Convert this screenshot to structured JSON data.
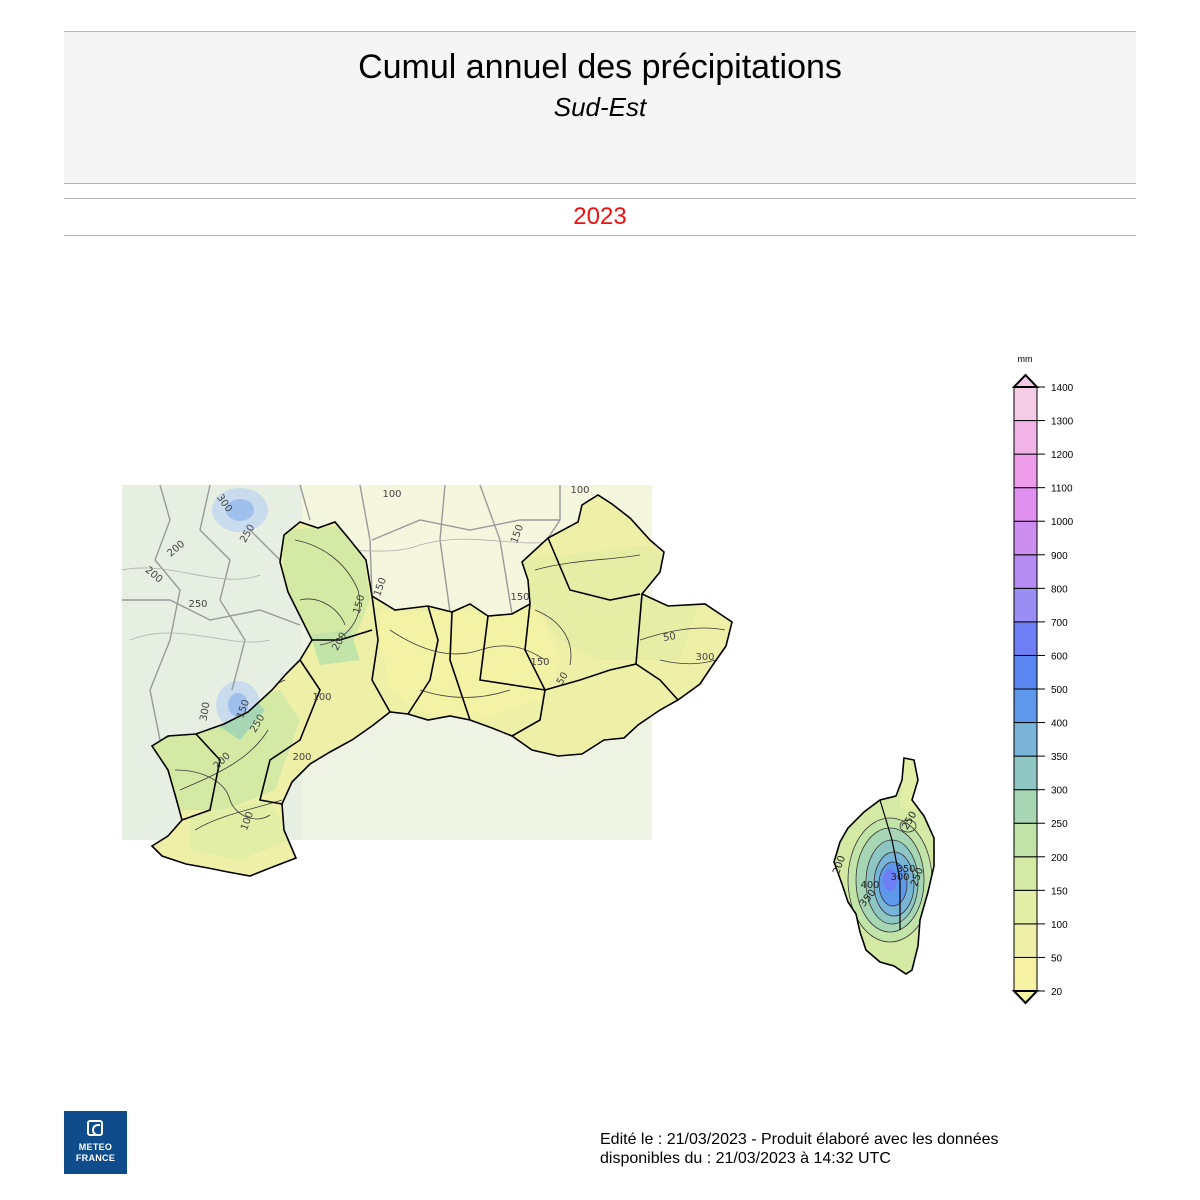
{
  "header": {
    "title": "Cumul annuel des précipitations",
    "subtitle": "Sud-Est",
    "year": "2023"
  },
  "legend": {
    "unit": "mm",
    "levels": [
      20,
      50,
      100,
      150,
      200,
      250,
      300,
      350,
      400,
      500,
      600,
      700,
      800,
      900,
      1000,
      1100,
      1200,
      1300,
      1400
    ],
    "colors": [
      "#f6f2a2",
      "#eef0a8",
      "#e2eea6",
      "#d4eaa4",
      "#c2e4a8",
      "#a6d6b4",
      "#8ec6c4",
      "#78b4d8",
      "#5e98ea",
      "#5a86f2",
      "#6e7ef4",
      "#9a8ef4",
      "#b48cf2",
      "#cc8ef0",
      "#e090ee",
      "#ee9cea",
      "#f2b4e6",
      "#f4cce8"
    ]
  },
  "map": {
    "contour_labels": {
      "mainland": [
        "100",
        "150",
        "300",
        "250",
        "200",
        "200",
        "250",
        "300",
        "150",
        "200",
        "100",
        "150",
        "200",
        "150",
        "100",
        "150",
        "150",
        "50",
        "50",
        "300",
        "200",
        "250",
        "100"
      ],
      "corsica": [
        "250",
        "200",
        "250",
        "350",
        "300",
        "400",
        "350"
      ]
    }
  },
  "footer": {
    "line1": "Edité le : 21/03/2023 - Produit élaboré avec les données",
    "line2": "disponibles du : 21/03/2023 à 14:32 UTC"
  },
  "logo": {
    "line1": "METEO",
    "line2": "FRANCE"
  }
}
